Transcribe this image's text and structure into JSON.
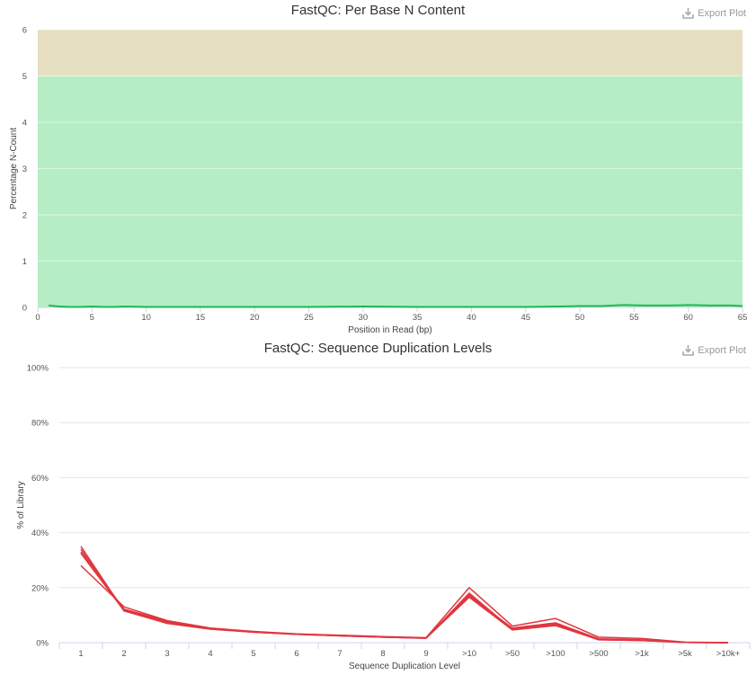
{
  "chart_data": [
    {
      "type": "line",
      "title": "FastQC: Per Base N Content",
      "xlabel": "Position in Read (bp)",
      "ylabel": "Percentage N-Count",
      "xlim": [
        0,
        65
      ],
      "ylim": [
        0,
        6
      ],
      "xticks": [
        0,
        5,
        10,
        15,
        20,
        25,
        30,
        35,
        40,
        45,
        50,
        55,
        60,
        65
      ],
      "yticks": [
        0,
        1,
        2,
        3,
        4,
        5,
        6
      ],
      "bands": [
        {
          "from": 0,
          "to": 5,
          "color": "#b5edc5"
        },
        {
          "from": 5,
          "to": 6,
          "color": "#e6dfc2"
        }
      ],
      "series": [
        {
          "color": "#1db954",
          "x": [
            1,
            2,
            3,
            4,
            5,
            6,
            7,
            8,
            10,
            15,
            20,
            25,
            30,
            35,
            40,
            45,
            48,
            50,
            52,
            54,
            56,
            58,
            60,
            62,
            64,
            65
          ],
          "y": [
            0.04,
            0.02,
            0.01,
            0.01,
            0.02,
            0.01,
            0.01,
            0.02,
            0.01,
            0.01,
            0.01,
            0.01,
            0.02,
            0.01,
            0.01,
            0.01,
            0.02,
            0.03,
            0.03,
            0.05,
            0.04,
            0.04,
            0.05,
            0.04,
            0.04,
            0.03
          ]
        }
      ]
    },
    {
      "type": "line",
      "title": "FastQC: Sequence Duplication Levels",
      "xlabel": "Sequence Duplication Level",
      "ylabel": "% of Library",
      "ylim": [
        0,
        100
      ],
      "yticks": [
        "0%",
        "20%",
        "40%",
        "60%",
        "80%",
        "100%"
      ],
      "categories": [
        "1",
        "2",
        "3",
        "4",
        "5",
        "6",
        "7",
        "8",
        "9",
        ">10",
        ">50",
        ">100",
        ">500",
        ">1k",
        ">5k",
        ">10k+"
      ],
      "series": [
        {
          "color": "#e0363f",
          "values": [
            35.0,
            11.5,
            7.2,
            5.0,
            3.8,
            3.0,
            2.5,
            2.0,
            1.6,
            18.0,
            4.8,
            6.5,
            1.0,
            0.8,
            0.1,
            0.0
          ]
        },
        {
          "color": "#e0363f",
          "values": [
            34.0,
            11.8,
            7.5,
            5.1,
            3.9,
            3.1,
            2.5,
            2.0,
            1.7,
            17.5,
            5.0,
            6.8,
            1.2,
            0.9,
            0.1,
            0.0
          ]
        },
        {
          "color": "#e0363f",
          "values": [
            33.0,
            12.2,
            7.8,
            5.2,
            4.0,
            3.1,
            2.6,
            2.1,
            1.7,
            17.0,
            5.3,
            7.2,
            1.4,
            1.0,
            0.1,
            0.0
          ]
        },
        {
          "color": "#e0363f",
          "values": [
            32.5,
            11.6,
            7.0,
            4.9,
            3.8,
            3.0,
            2.5,
            2.0,
            1.6,
            16.5,
            4.6,
            6.2,
            1.1,
            0.8,
            0.1,
            0.0
          ]
        },
        {
          "color": "#e0363f",
          "values": [
            28.0,
            13.0,
            8.0,
            5.3,
            4.1,
            3.2,
            2.7,
            2.2,
            1.8,
            20.0,
            6.0,
            8.8,
            2.0,
            1.5,
            0.2,
            0.0
          ]
        }
      ]
    }
  ],
  "ui": {
    "export_label": "Export Plot"
  }
}
